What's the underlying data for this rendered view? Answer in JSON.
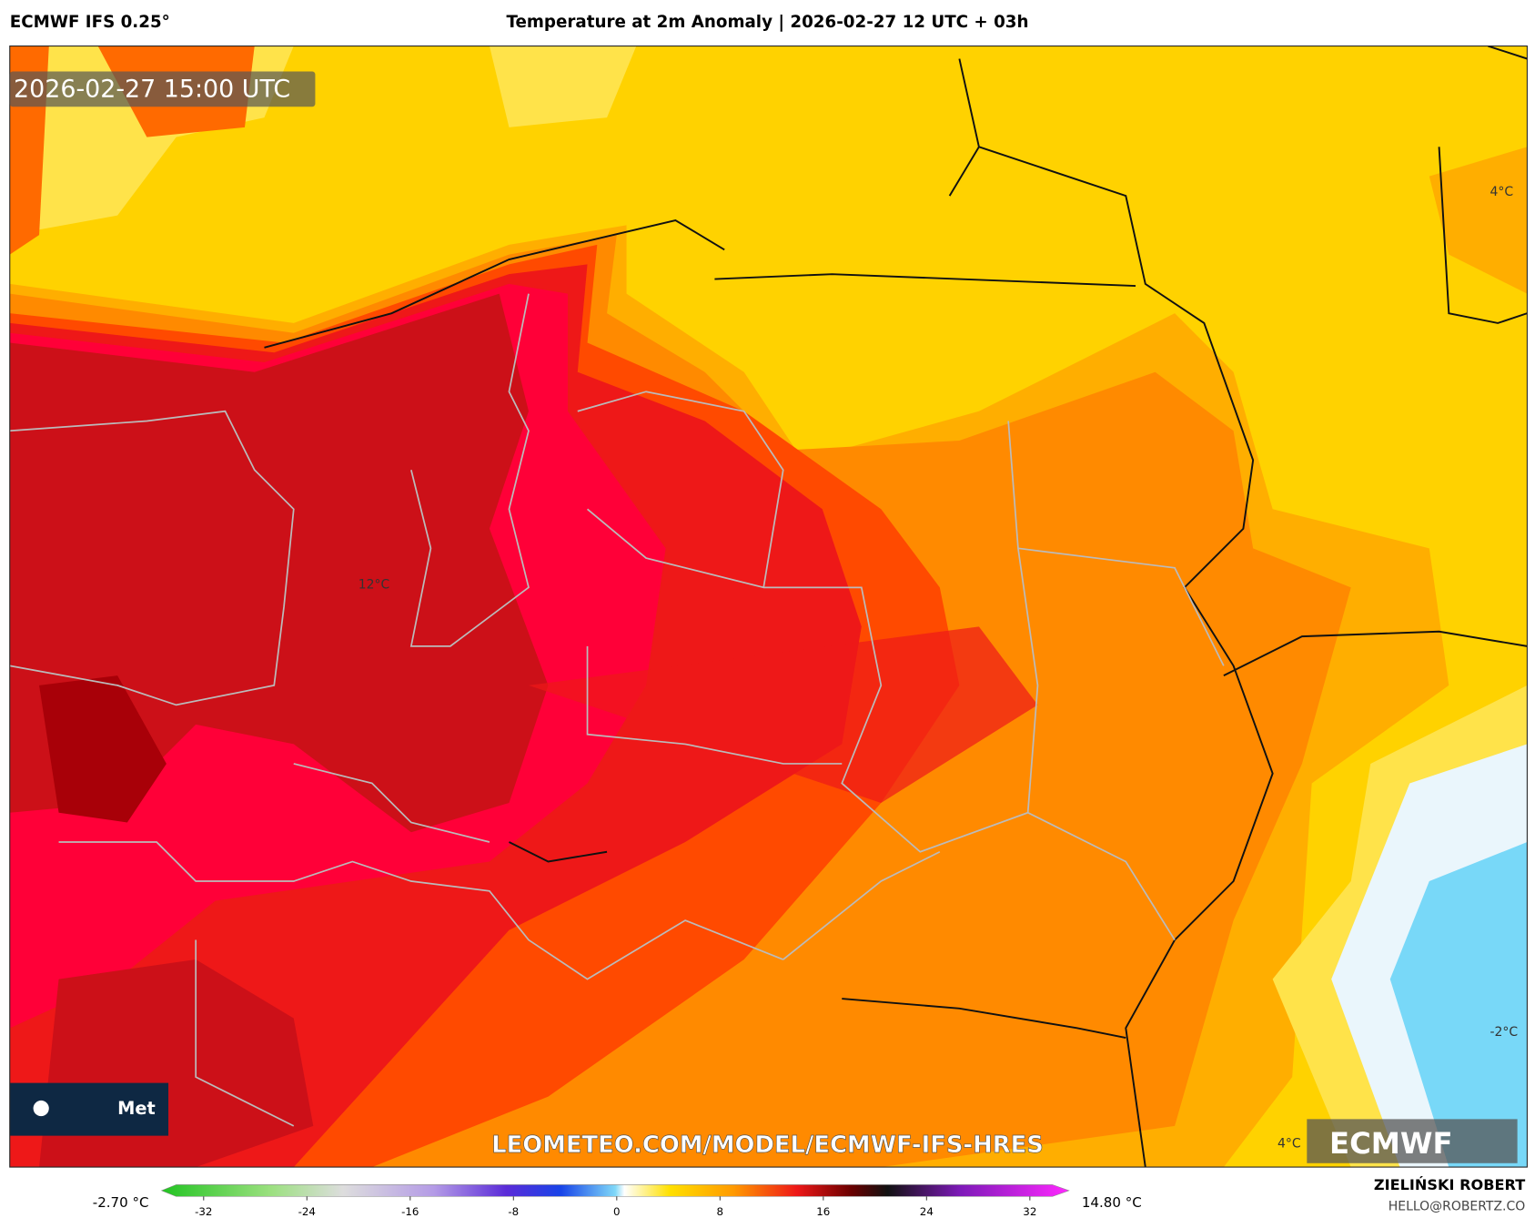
{
  "header": {
    "model": "ECMWF IFS 0.25°",
    "title": "Temperature at 2m Anomaly | 2026-02-27 12 UTC + 03h"
  },
  "map": {
    "timestamp": "2026-02-27 15:00 UTC",
    "contour_labels": [
      "12°C",
      "4°C",
      "-2°C",
      "4°C"
    ],
    "watermark": "LEOMETEO.COM/MODEL/ECMWF-IFS-HRES",
    "logo": "ECMWF",
    "badge": "Met"
  },
  "colorbar": {
    "min_label": "-2.70 °C",
    "max_label": "14.80 °C",
    "ticks": [
      -32,
      -24,
      -16,
      -8,
      0,
      8,
      16,
      24,
      32
    ]
  },
  "credit": {
    "author": "ZIELIŃSKI ROBERT",
    "email": "HELLO@ROBERTZ.CO"
  }
}
